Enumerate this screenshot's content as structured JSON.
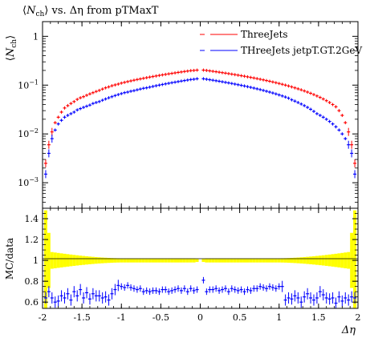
{
  "chart_data": {
    "type": "scatter",
    "title": "⟨N_ch⟩ vs. Δη from pTMaxT",
    "title_parts": {
      "open": "⟨",
      "N": "N",
      "sub": "ch",
      "close": "⟩ vs. Δη from pTMaxT"
    },
    "xlabel": "Δη",
    "ylabel_top": "⟨N_ch⟩",
    "ylabel_top_parts": {
      "open": "⟨",
      "N": "N",
      "sub": "ch",
      "close": "⟩"
    },
    "ylabel_bottom": "MC/data",
    "xlim": [
      -2,
      2
    ],
    "ylim_top": [
      0.0003,
      2
    ],
    "yscale_top": "log",
    "ylim_bottom": [
      0.54,
      1.5
    ],
    "x_ticks": [
      "-2",
      "-1.5",
      "-1",
      "-0.5",
      "0",
      "0.5",
      "1",
      "1.5",
      "2"
    ],
    "y_ticks_top": [
      "1",
      "10⁻¹",
      "10⁻²",
      "10⁻³"
    ],
    "y_ticks_bottom": [
      "0.6",
      "0.8",
      "1",
      "1.2",
      "1.4"
    ],
    "legend_position": "top-right",
    "x_centers": [
      -1.96,
      -1.92,
      -1.88,
      -1.84,
      -1.8,
      -1.76,
      -1.72,
      -1.68,
      -1.64,
      -1.6,
      -1.56,
      -1.52,
      -1.48,
      -1.44,
      -1.4,
      -1.36,
      -1.32,
      -1.28,
      -1.24,
      -1.2,
      -1.16,
      -1.12,
      -1.08,
      -1.04,
      -1.0,
      -0.96,
      -0.92,
      -0.88,
      -0.84,
      -0.8,
      -0.76,
      -0.72,
      -0.68,
      -0.64,
      -0.6,
      -0.56,
      -0.52,
      -0.48,
      -0.44,
      -0.4,
      -0.36,
      -0.32,
      -0.28,
      -0.24,
      -0.2,
      -0.16,
      -0.12,
      -0.08,
      -0.04,
      0.04,
      0.08,
      0.12,
      0.16,
      0.2,
      0.24,
      0.28,
      0.32,
      0.36,
      0.4,
      0.44,
      0.48,
      0.52,
      0.56,
      0.6,
      0.64,
      0.68,
      0.72,
      0.76,
      0.8,
      0.84,
      0.88,
      0.92,
      0.96,
      1.0,
      1.04,
      1.08,
      1.12,
      1.16,
      1.2,
      1.24,
      1.28,
      1.32,
      1.36,
      1.4,
      1.44,
      1.48,
      1.52,
      1.56,
      1.6,
      1.64,
      1.68,
      1.72,
      1.76,
      1.8,
      1.84,
      1.88,
      1.92,
      1.96
    ],
    "series": [
      {
        "name": "ThreeJets",
        "color": "#ff0000",
        "values": [
          0.0025,
          0.006,
          0.011,
          0.017,
          0.022,
          0.028,
          0.034,
          0.038,
          0.042,
          0.046,
          0.051,
          0.055,
          0.058,
          0.062,
          0.066,
          0.07,
          0.074,
          0.078,
          0.083,
          0.088,
          0.092,
          0.097,
          0.101,
          0.105,
          0.11,
          0.114,
          0.118,
          0.122,
          0.126,
          0.13,
          0.134,
          0.138,
          0.142,
          0.146,
          0.15,
          0.154,
          0.158,
          0.162,
          0.166,
          0.17,
          0.174,
          0.178,
          0.182,
          0.186,
          0.19,
          0.194,
          0.198,
          0.2,
          0.203,
          0.203,
          0.2,
          0.196,
          0.192,
          0.188,
          0.184,
          0.18,
          0.176,
          0.172,
          0.168,
          0.164,
          0.16,
          0.156,
          0.152,
          0.148,
          0.144,
          0.14,
          0.136,
          0.132,
          0.128,
          0.124,
          0.12,
          0.116,
          0.112,
          0.108,
          0.104,
          0.1,
          0.096,
          0.092,
          0.088,
          0.084,
          0.08,
          0.076,
          0.072,
          0.068,
          0.064,
          0.06,
          0.056,
          0.052,
          0.048,
          0.044,
          0.04,
          0.036,
          0.03,
          0.024,
          0.017,
          0.011,
          0.006,
          0.0025
        ]
      },
      {
        "name": "THreeJets jetpT.GT.2GeV",
        "color": "#0000ff",
        "values": [
          0.0015,
          0.004,
          0.008,
          0.012,
          0.016,
          0.019,
          0.022,
          0.024,
          0.026,
          0.028,
          0.031,
          0.033,
          0.035,
          0.037,
          0.039,
          0.042,
          0.044,
          0.046,
          0.049,
          0.052,
          0.055,
          0.058,
          0.061,
          0.064,
          0.067,
          0.07,
          0.072,
          0.075,
          0.077,
          0.08,
          0.083,
          0.086,
          0.088,
          0.091,
          0.094,
          0.097,
          0.1,
          0.103,
          0.106,
          0.109,
          0.112,
          0.115,
          0.118,
          0.121,
          0.124,
          0.127,
          0.13,
          0.132,
          0.135,
          0.135,
          0.132,
          0.129,
          0.126,
          0.123,
          0.12,
          0.117,
          0.114,
          0.111,
          0.108,
          0.105,
          0.102,
          0.099,
          0.096,
          0.093,
          0.09,
          0.087,
          0.084,
          0.081,
          0.078,
          0.075,
          0.072,
          0.069,
          0.066,
          0.063,
          0.06,
          0.057,
          0.054,
          0.05,
          0.047,
          0.044,
          0.041,
          0.038,
          0.035,
          0.032,
          0.029,
          0.026,
          0.024,
          0.022,
          0.02,
          0.018,
          0.016,
          0.014,
          0.012,
          0.01,
          0.008,
          0.006,
          0.004,
          0.0015
        ]
      }
    ],
    "ratio_blue": [
      0.64,
      0.7,
      0.64,
      0.6,
      0.61,
      0.66,
      0.64,
      0.68,
      0.62,
      0.7,
      0.66,
      0.72,
      0.64,
      0.69,
      0.63,
      0.68,
      0.66,
      0.66,
      0.64,
      0.65,
      0.62,
      0.68,
      0.72,
      0.76,
      0.75,
      0.74,
      0.76,
      0.74,
      0.73,
      0.72,
      0.73,
      0.7,
      0.71,
      0.7,
      0.71,
      0.71,
      0.7,
      0.72,
      0.72,
      0.7,
      0.71,
      0.72,
      0.73,
      0.71,
      0.73,
      0.7,
      0.73,
      0.71,
      0.72,
      0.81,
      0.7,
      0.72,
      0.72,
      0.73,
      0.71,
      0.72,
      0.73,
      0.7,
      0.73,
      0.72,
      0.71,
      0.72,
      0.7,
      0.72,
      0.71,
      0.73,
      0.73,
      0.75,
      0.74,
      0.73,
      0.75,
      0.74,
      0.73,
      0.75,
      0.75,
      0.62,
      0.64,
      0.63,
      0.66,
      0.64,
      0.6,
      0.65,
      0.68,
      0.64,
      0.62,
      0.64,
      0.7,
      0.67,
      0.64,
      0.63,
      0.64,
      0.59,
      0.65,
      0.61,
      0.64,
      0.62,
      0.65,
      0.64
    ],
    "ratio_band_halfwidth_edges": [
      0.48,
      0.08,
      0.02
    ]
  }
}
